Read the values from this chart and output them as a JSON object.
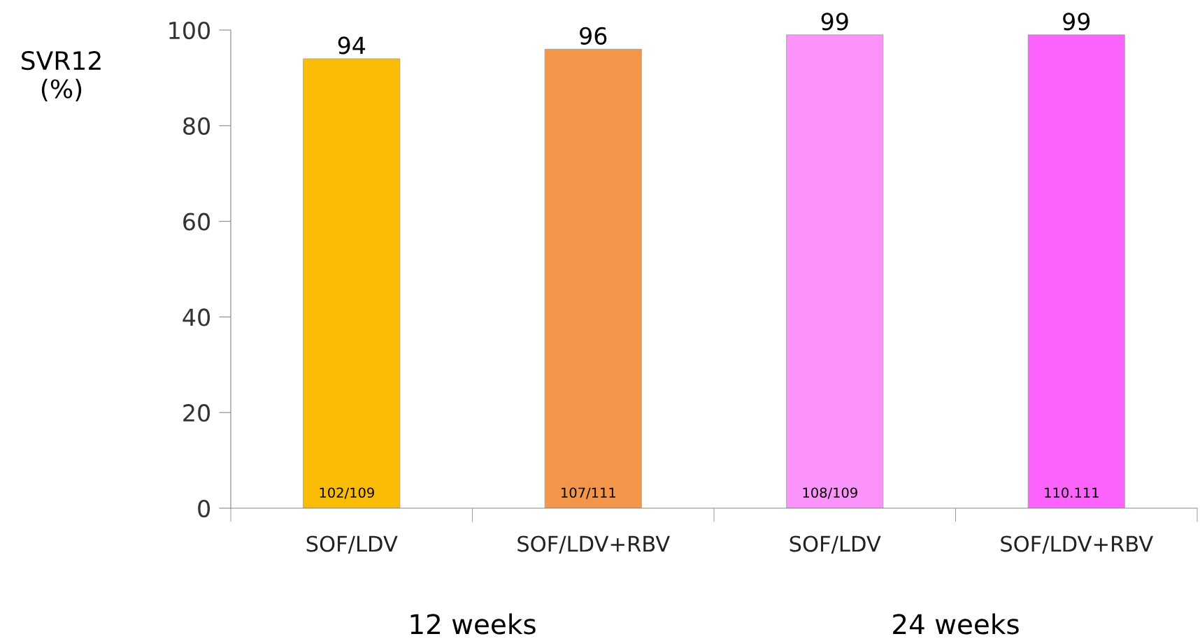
{
  "chart_data": {
    "type": "bar",
    "ylabel": "SVR12\n(%)",
    "categories": [
      "SOF/LDV",
      "SOF/LDV+RBV",
      "SOF/LDV",
      "SOF/LDV+RBV"
    ],
    "values": [
      94,
      96,
      99,
      99
    ],
    "colors": [
      "#fbbc05",
      "#f4964a",
      "#fb93fb",
      "#fc63fc"
    ],
    "data_labels": true,
    "ylim": [
      0,
      100
    ],
    "yticks": [
      0,
      20,
      40,
      60,
      80,
      100
    ],
    "grid": false,
    "legend": false,
    "annotations": [
      "12 weeks",
      "24 weeks",
      "102/109",
      "107/111",
      "108/109",
      "110.111"
    ]
  }
}
